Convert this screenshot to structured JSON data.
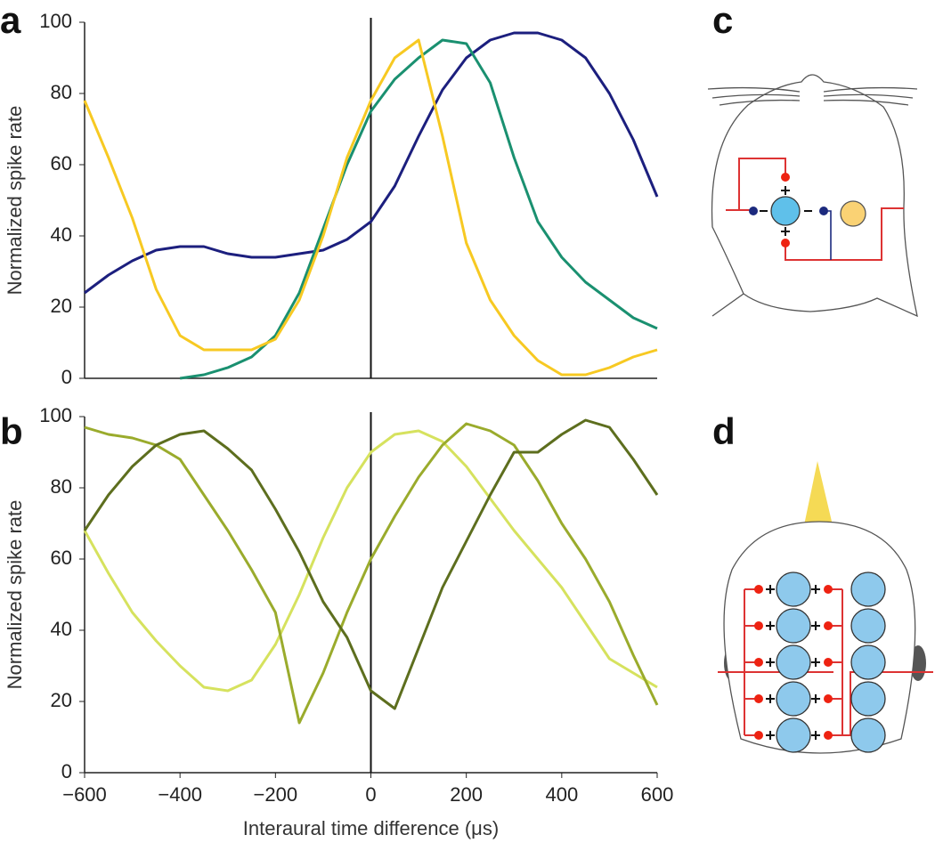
{
  "chart_data": [
    {
      "type": "line",
      "panel": "a",
      "ylabel": "Normalized spike rate",
      "x": [
        -600,
        -550,
        -500,
        -450,
        -400,
        -350,
        -300,
        -250,
        -200,
        -150,
        -100,
        -50,
        0,
        50,
        100,
        150,
        200,
        250,
        300,
        350,
        400,
        450,
        500,
        550,
        600
      ],
      "xlim": [
        -600,
        600
      ],
      "ylim": [
        0,
        100
      ],
      "yticks": [
        0,
        20,
        40,
        60,
        80,
        100
      ],
      "vline": 0,
      "series": [
        {
          "color": "#1c1f7e",
          "values": [
            24,
            29,
            33,
            36,
            37,
            37,
            35,
            34,
            34,
            35,
            36,
            39,
            44,
            54,
            68,
            81,
            90,
            95,
            97,
            97,
            95,
            90,
            80,
            67,
            51
          ]
        },
        {
          "color": "#1a9070",
          "values": [
            null,
            null,
            null,
            null,
            0,
            1,
            3,
            6,
            12,
            24,
            42,
            60,
            75,
            84,
            90,
            95,
            94,
            83,
            62,
            44,
            34,
            27,
            22,
            17,
            14
          ]
        },
        {
          "color": "#f7c922",
          "values": [
            78,
            62,
            45,
            25,
            12,
            8,
            8,
            8,
            11,
            22,
            40,
            62,
            78,
            90,
            95,
            68,
            38,
            22,
            12,
            5,
            1,
            1,
            3,
            6,
            8
          ]
        }
      ]
    },
    {
      "type": "line",
      "panel": "b",
      "ylabel": "Normalized spike rate",
      "xlabel": "Interaural time difference (μs)",
      "x": [
        -600,
        -550,
        -500,
        -450,
        -400,
        -350,
        -300,
        -250,
        -200,
        -150,
        -100,
        -50,
        0,
        50,
        100,
        150,
        200,
        250,
        300,
        350,
        400,
        450,
        500,
        550,
        600
      ],
      "xlim": [
        -600,
        600
      ],
      "xticks": [
        {
          "value": -600,
          "label": "−600"
        },
        {
          "value": -400,
          "label": "−400"
        },
        {
          "value": -200,
          "label": "−200"
        },
        0,
        200,
        400,
        600
      ],
      "ylim": [
        0,
        100
      ],
      "yticks": [
        0,
        20,
        40,
        60,
        80,
        100
      ],
      "vline": 0,
      "series": [
        {
          "color": "#d6e25e",
          "values": [
            68,
            56,
            45,
            37,
            30,
            24,
            23,
            26,
            36,
            50,
            66,
            80,
            90,
            95,
            96,
            93,
            86,
            77,
            68,
            60,
            52,
            42,
            32,
            28,
            24
          ]
        },
        {
          "color": "#9aab2c",
          "values": [
            97,
            95,
            94,
            92,
            88,
            78,
            68,
            57,
            45,
            14,
            28,
            45,
            60,
            72,
            83,
            92,
            98,
            96,
            92,
            82,
            70,
            60,
            48,
            33,
            19
          ]
        },
        {
          "color": "#5d6e1e",
          "values": [
            68,
            78,
            86,
            92,
            95,
            96,
            91,
            85,
            74,
            62,
            48,
            38,
            23,
            18,
            35,
            52,
            65,
            78,
            90,
            90,
            95,
            99,
            97,
            88,
            78
          ]
        }
      ]
    }
  ],
  "diagram_labels": [
    "c",
    "d"
  ]
}
